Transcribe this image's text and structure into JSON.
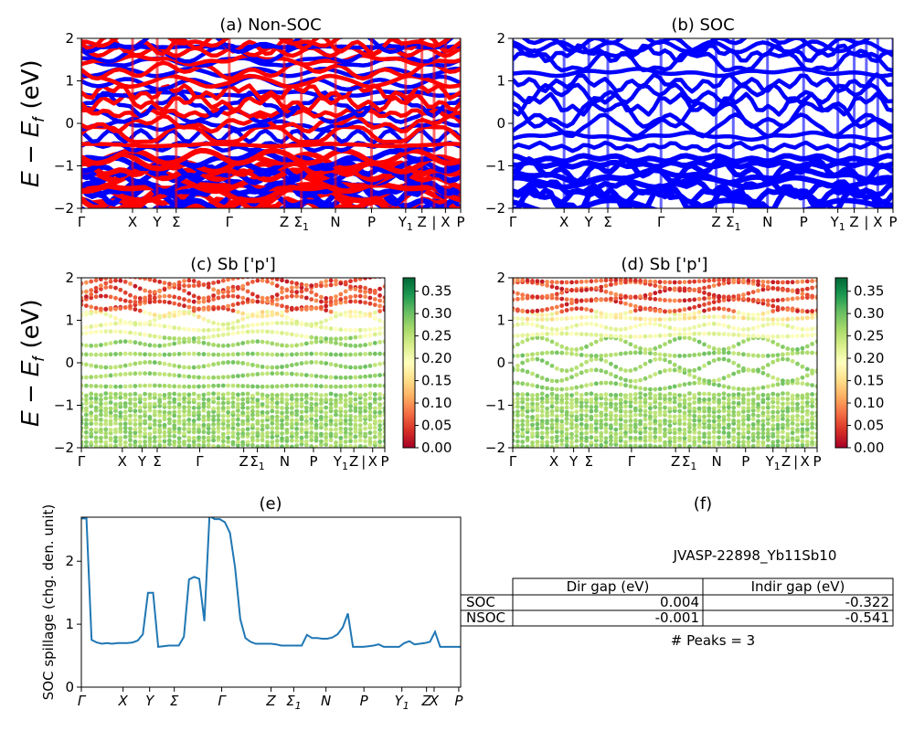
{
  "chart_data": [
    {
      "type": "line",
      "title": "(a) Non-SOC",
      "ylabel": "E − E_f (eV)",
      "ylim": [
        -2,
        2
      ],
      "yticks": [
        "-2",
        "-1",
        "0",
        "1",
        "2"
      ],
      "kpath_labels": [
        "Γ",
        "X",
        "Y",
        "Σ",
        "Γ",
        "Z",
        "Σ1",
        "N",
        "P",
        "Y1",
        "Z",
        "|",
        "X",
        "P"
      ],
      "series": [
        {
          "color": "#ff0000",
          "values": [
            [
              -0.25,
              0.2,
              -0.6,
              -0.3,
              0.35,
              0.0,
              -0.2
            ],
            [
              0.55,
              0.3,
              0.8,
              0.4,
              0.9,
              0.5,
              0.45
            ],
            [
              -0.5,
              -0.35,
              0.1,
              -0.6,
              -0.2,
              -0.45,
              -0.1
            ],
            [
              1.2,
              1.5,
              0.95,
              1.35,
              1.1,
              1.45,
              1.3
            ]
          ]
        },
        {
          "color": "#0000ff",
          "values": [
            [
              -0.2,
              0.25,
              -0.55,
              -0.25,
              0.4,
              0.05,
              -0.15
            ],
            [
              0.6,
              0.35,
              0.85,
              0.45,
              0.95,
              0.55,
              0.5
            ]
          ]
        }
      ]
    },
    {
      "type": "line",
      "title": "(b) SOC",
      "ylim": [
        -2,
        2
      ],
      "yticks": [
        "-2",
        "-1",
        "0",
        "1",
        "2"
      ],
      "kpath_labels": [
        "Γ",
        "X",
        "Y",
        "Σ",
        "Γ",
        "Z",
        "Σ1",
        "N",
        "P",
        "Y1",
        "Z",
        "|",
        "X",
        "P"
      ],
      "series": [
        {
          "color": "#0000ff",
          "values": [
            [
              -0.25,
              0.2,
              -0.6,
              -0.3,
              0.35,
              0.0,
              -0.2
            ],
            [
              0.55,
              0.3,
              0.8,
              0.4,
              0.9,
              0.5,
              0.45
            ],
            [
              -0.5,
              -0.35,
              0.1,
              -0.6,
              -0.2,
              -0.45,
              -0.1
            ],
            [
              1.2,
              1.5,
              0.95,
              1.35,
              1.1,
              1.45,
              1.3
            ],
            [
              0.2,
              0.45,
              0.0,
              0.3,
              0.6,
              0.15,
              0.35
            ]
          ]
        }
      ]
    },
    {
      "type": "scatter",
      "title": "(c)  Sb ['p']",
      "ylabel": "E − E_f (eV)",
      "ylim": [
        -2,
        2
      ],
      "yticks": [
        "-2",
        "-1",
        "0",
        "1",
        "2"
      ],
      "kpath_labels": [
        "Γ",
        "X",
        "Y",
        "Σ",
        "Γ",
        "Z",
        "Σ1",
        "N",
        "P",
        "Y1",
        "Z",
        "|",
        "X",
        "P"
      ],
      "colorbar": {
        "cmap": "RdYlGn",
        "range": [
          0,
          0.38
        ],
        "ticks": [
          "0.00",
          "0.05",
          "0.10",
          "0.15",
          "0.20",
          "0.25",
          "0.30",
          "0.35"
        ]
      }
    },
    {
      "type": "scatter",
      "title": "(d) Sb ['p']",
      "ylim": [
        -2,
        2
      ],
      "yticks": [
        "-2",
        "-1",
        "0",
        "1",
        "2"
      ],
      "kpath_labels": [
        "Γ",
        "X",
        "Y",
        "Σ",
        "Γ",
        "Z",
        "Σ1",
        "N",
        "P",
        "Y1",
        "Z",
        "|",
        "X",
        "P"
      ],
      "colorbar": {
        "cmap": "RdYlGn",
        "range": [
          0,
          0.38
        ],
        "ticks": [
          "0.00",
          "0.05",
          "0.10",
          "0.15",
          "0.20",
          "0.25",
          "0.30",
          "0.35"
        ]
      }
    },
    {
      "type": "line",
      "title": "(e)",
      "ylabel": "SOC spillage (chg. den. unit)",
      "ylim": [
        0,
        2.7
      ],
      "yticks": [
        "0",
        "1",
        "2"
      ],
      "kpath_labels": [
        "Γ",
        "X",
        "Y",
        "Σ",
        "Γ",
        "Z",
        "Σ1",
        "N",
        "P",
        "Y1",
        "Z",
        "X",
        "P"
      ],
      "series": [
        {
          "color": "#1f77b4",
          "x": [
            0,
            1,
            2,
            3,
            4,
            5,
            6,
            7,
            8,
            9,
            10,
            11,
            12,
            13,
            14,
            15,
            16,
            17,
            18,
            19,
            20,
            21,
            22,
            23,
            24,
            25,
            26,
            27,
            28,
            29,
            30,
            31,
            32,
            33,
            34,
            35,
            36,
            37,
            38,
            39,
            40,
            41,
            42,
            43,
            44,
            45,
            46,
            47,
            48,
            49,
            50,
            51,
            52,
            53,
            54,
            55,
            56,
            57,
            58,
            59,
            60,
            61,
            62,
            63,
            64,
            65,
            66,
            67,
            68,
            69,
            70,
            71,
            72,
            73,
            74
          ],
          "values": [
            2.68,
            2.68,
            0.75,
            0.71,
            0.69,
            0.7,
            0.69,
            0.7,
            0.7,
            0.7,
            0.71,
            0.74,
            0.84,
            1.5,
            1.5,
            0.64,
            0.65,
            0.66,
            0.66,
            0.66,
            0.8,
            1.71,
            1.75,
            1.72,
            1.05,
            2.72,
            2.67,
            2.67,
            2.62,
            2.45,
            1.9,
            1.08,
            0.78,
            0.72,
            0.69,
            0.69,
            0.69,
            0.69,
            0.68,
            0.66,
            0.66,
            0.66,
            0.66,
            0.66,
            0.83,
            0.78,
            0.78,
            0.77,
            0.77,
            0.79,
            0.84,
            0.95,
            1.17,
            0.64,
            0.64,
            0.64,
            0.65,
            0.66,
            0.68,
            0.64,
            0.64,
            0.64,
            0.64,
            0.7,
            0.73,
            0.68,
            0.69,
            0.7,
            0.72,
            0.88,
            0.64,
            0.64,
            0.64,
            0.64,
            0.64
          ]
        }
      ]
    }
  ],
  "panel_f": {
    "title": "(f)",
    "material": "JVASP-22898_Yb11Sb10",
    "columns": [
      "Dir gap (eV)",
      "Indir gap (eV)"
    ],
    "rows": [
      {
        "label": "SOC",
        "dir": "0.004",
        "indir": "-0.322"
      },
      {
        "label": "NSOC",
        "dir": "-0.001",
        "indir": "-0.541"
      }
    ],
    "peaks": "# Peaks = 3"
  }
}
